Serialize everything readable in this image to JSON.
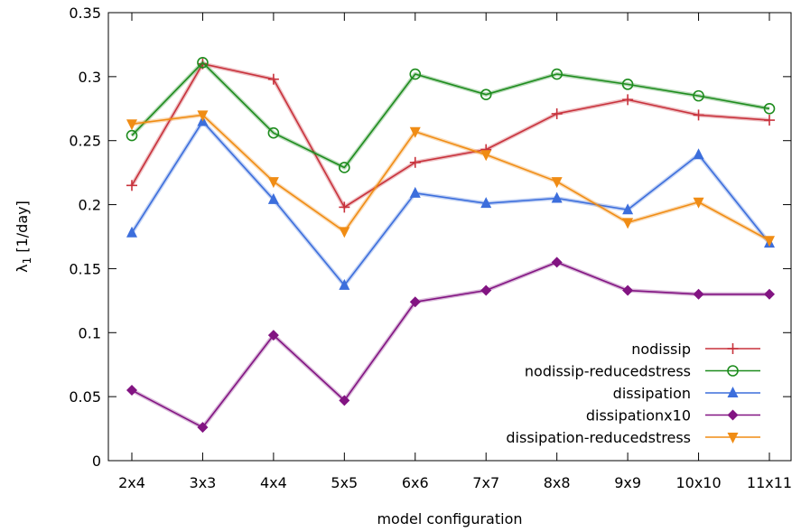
{
  "chart_data": {
    "type": "line",
    "xlabel": "model configuration",
    "ylabel_main": "λ",
    "ylabel_sub": "1",
    "ylabel_unit": " [1/day]",
    "categories": [
      "2x4",
      "3x3",
      "4x4",
      "5x5",
      "6x6",
      "7x7",
      "8x8",
      "9x9",
      "10x10",
      "11x11"
    ],
    "ylim": [
      0,
      0.35
    ],
    "yticks": [
      0,
      0.05,
      0.1,
      0.15,
      0.2,
      0.25,
      0.3,
      0.35
    ],
    "ytick_labels": [
      "0",
      "0.05",
      "0.1",
      "0.15",
      "0.2",
      "0.25",
      "0.3",
      "0.35"
    ],
    "grid": false,
    "legend_position": "bottom-right",
    "series": [
      {
        "name": "nodissip",
        "marker": "plus",
        "color": "#c8323c",
        "values": [
          0.215,
          0.31,
          0.298,
          0.198,
          0.233,
          0.243,
          0.271,
          0.282,
          0.27,
          0.266
        ]
      },
      {
        "name": "nodissip-reducedstress",
        "marker": "circle",
        "color": "#1e8c1e",
        "values": [
          0.254,
          0.311,
          0.256,
          0.229,
          0.302,
          0.286,
          0.302,
          0.294,
          0.285,
          0.275
        ]
      },
      {
        "name": "dissipation",
        "marker": "triangle-up",
        "color": "#3c6edc",
        "values": [
          0.178,
          0.265,
          0.204,
          0.137,
          0.209,
          0.201,
          0.205,
          0.196,
          0.239,
          0.17
        ]
      },
      {
        "name": "dissipationx10",
        "marker": "diamond",
        "color": "#821482",
        "values": [
          0.055,
          0.026,
          0.098,
          0.047,
          0.124,
          0.133,
          0.155,
          0.133,
          0.13,
          0.13
        ]
      },
      {
        "name": "dissipation-reducedstress",
        "marker": "triangle-down",
        "color": "#f08c14",
        "values": [
          0.263,
          0.27,
          0.218,
          0.179,
          0.257,
          0.239,
          0.218,
          0.186,
          0.202,
          0.172
        ]
      }
    ]
  }
}
